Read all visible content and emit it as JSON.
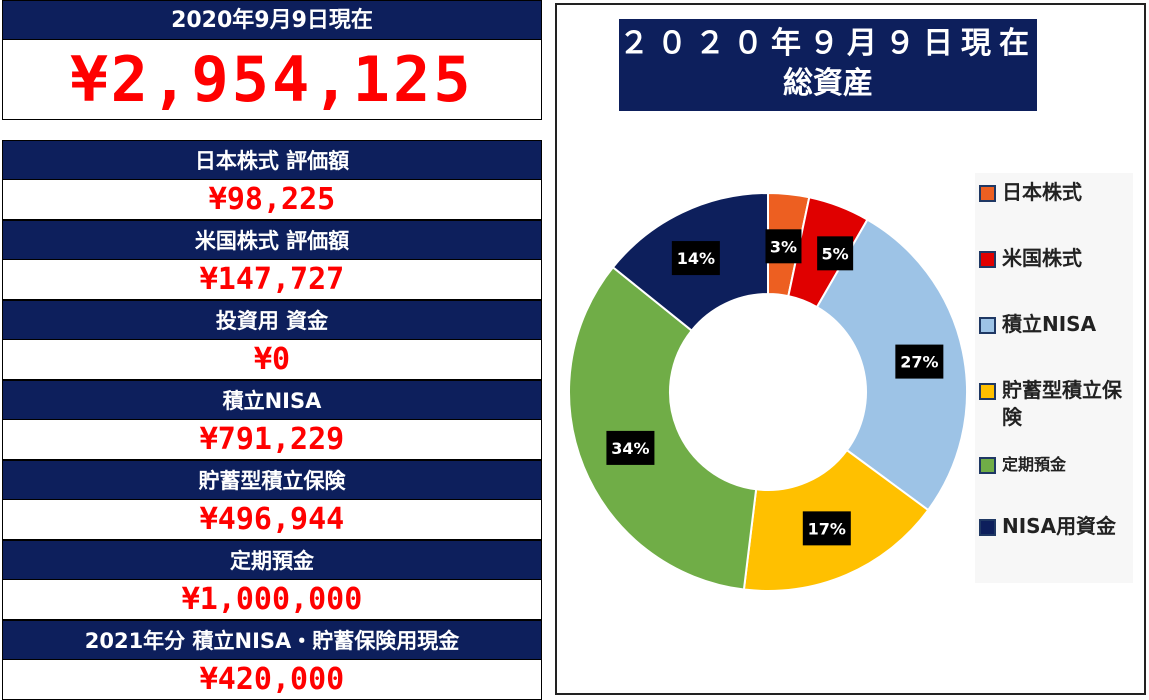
{
  "summary": {
    "date_label": "2020年9月9日現在",
    "total_value": "¥2,954,125"
  },
  "items": [
    {
      "label": "日本株式  評価額",
      "value": "¥98,225"
    },
    {
      "label": "米国株式  評価額",
      "value": "¥147,727"
    },
    {
      "label": "投資用  資金",
      "value": "¥0"
    },
    {
      "label": "積立NISA",
      "value": "¥791,229"
    },
    {
      "label": "貯蓄型積立保険",
      "value": "¥496,944"
    },
    {
      "label": "定期預金",
      "value": "¥1,000,000"
    },
    {
      "label": "2021年分 積立NISA・貯蓄保険用現金",
      "value": "¥420,000"
    }
  ],
  "chart_title": {
    "line1": "２０２０年９月９日現在",
    "line2": "総資産"
  },
  "chart_data": {
    "type": "pie",
    "donut": true,
    "title": "２０２０年９月９日現在 総資産",
    "categories": [
      "日本株式",
      "米国株式",
      "積立NISA",
      "貯蓄型積立保険",
      "定期預金",
      "NISA用資金"
    ],
    "values": [
      98225,
      147727,
      791229,
      496944,
      1000000,
      420000
    ],
    "labels": [
      "3%",
      "5%",
      "27%",
      "17%",
      "34%",
      "14%"
    ],
    "colors": [
      "#ed5f21",
      "#e00000",
      "#9dc3e6",
      "#ffc000",
      "#70ad47",
      "#0d1f5c"
    ],
    "legend_position": "right"
  }
}
